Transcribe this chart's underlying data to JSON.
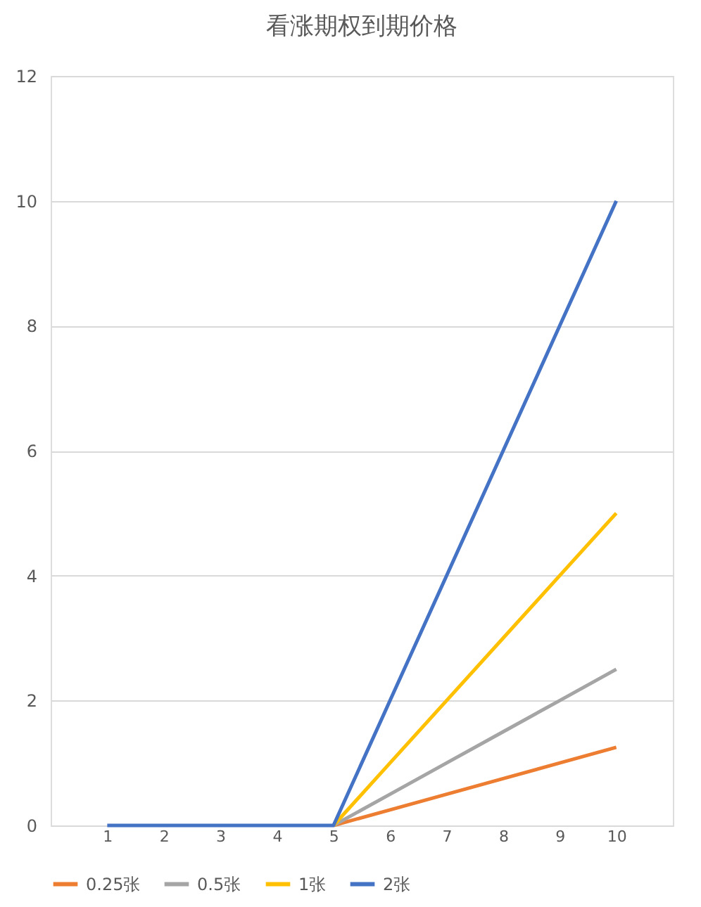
{
  "chart_data": {
    "type": "line",
    "title": "看涨期权到期价格",
    "categories": [
      "1",
      "2",
      "3",
      "4",
      "5",
      "6",
      "7",
      "8",
      "9",
      "10"
    ],
    "series": [
      {
        "name": "0.25张",
        "color": "#ed7d31",
        "values": [
          null,
          null,
          null,
          null,
          0,
          0.25,
          0.5,
          0.75,
          1,
          1.25
        ]
      },
      {
        "name": "0.5张",
        "color": "#a5a5a5",
        "values": [
          null,
          null,
          null,
          null,
          0,
          0.5,
          1,
          1.5,
          2,
          2.5
        ]
      },
      {
        "name": "1张",
        "color": "#ffc000",
        "values": [
          null,
          null,
          null,
          null,
          0,
          1,
          2,
          3,
          4,
          5
        ]
      },
      {
        "name": "2张",
        "color": "#4472c4",
        "values": [
          0,
          0,
          0,
          0,
          0,
          2,
          4,
          6,
          8,
          10
        ]
      }
    ],
    "ylim": [
      0,
      12
    ],
    "yticks": [
      0,
      2,
      4,
      6,
      8,
      10,
      12
    ],
    "grid": "y",
    "legend": "bottom",
    "marker": "none",
    "line_style": "solid"
  }
}
